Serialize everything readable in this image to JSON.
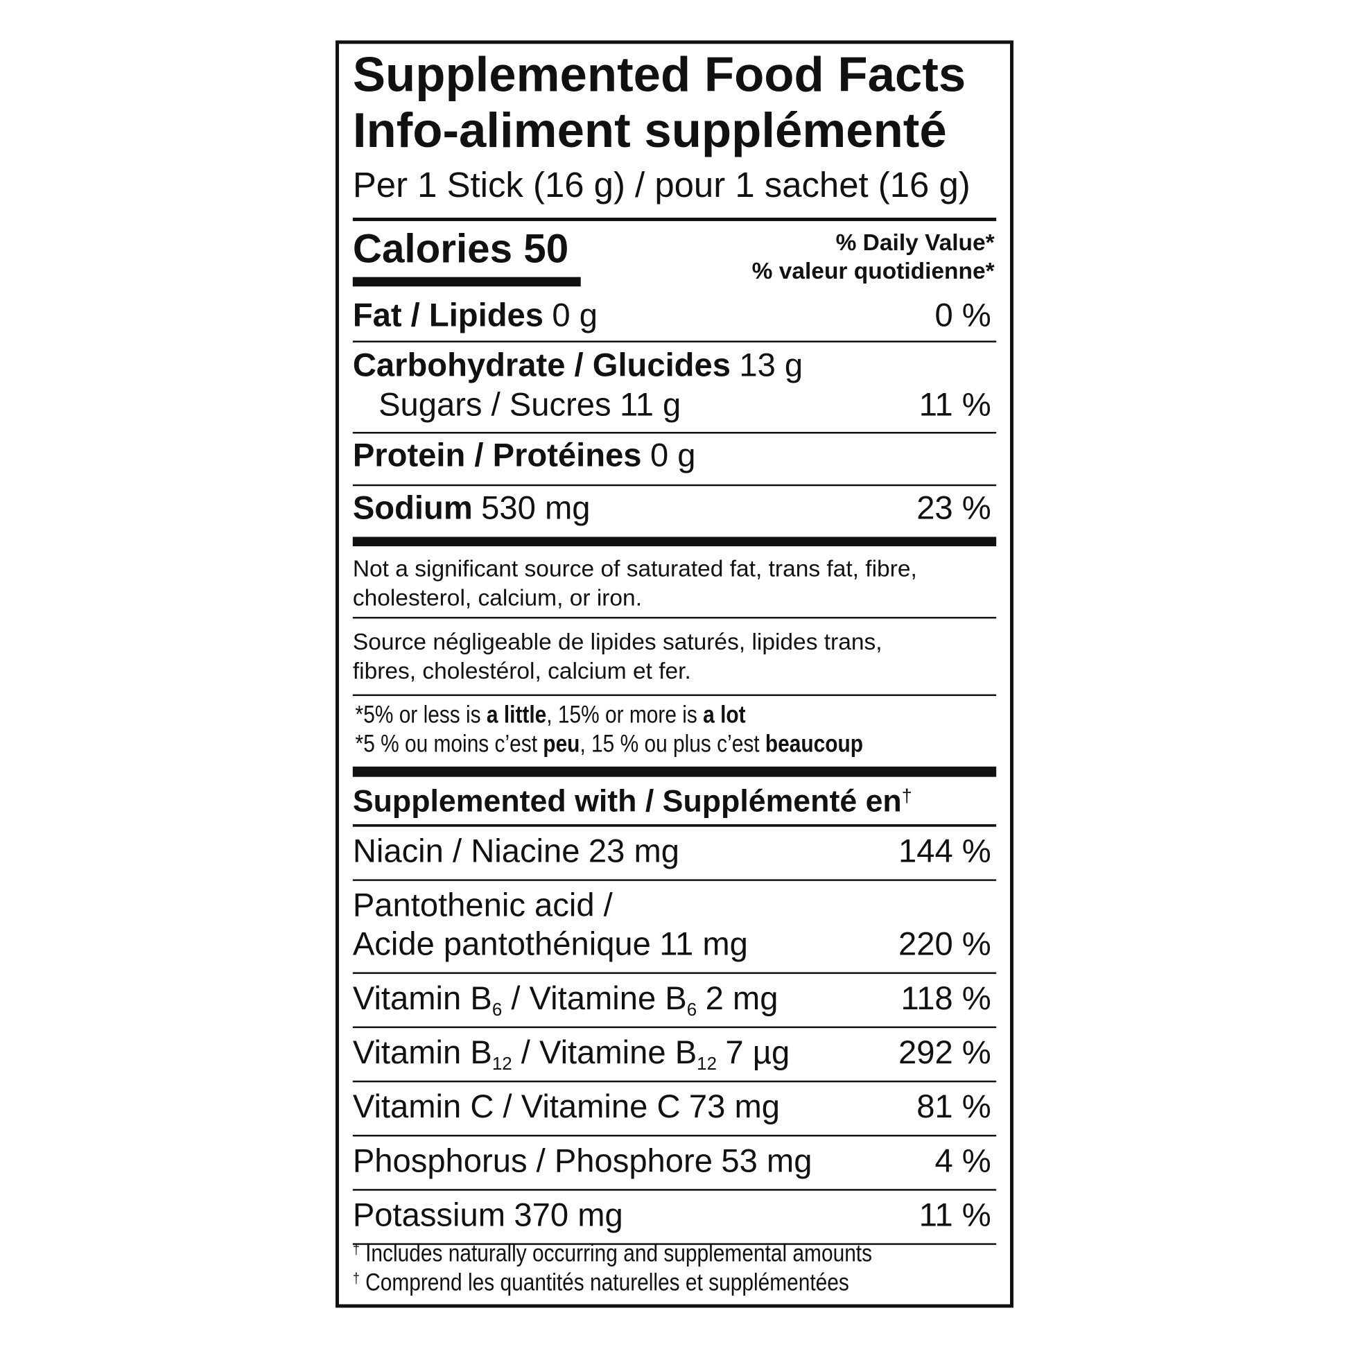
{
  "header": {
    "title": [
      "Supplemented Food Facts",
      "Info-aliment supplémenté"
    ],
    "serving": "Per 1 Stick (16 g) / pour 1 sachet (16 g)"
  },
  "calories": {
    "label": "Calories",
    "value": 50
  },
  "daily_value": [
    "% Daily Value*",
    "% valeur quotidienne*"
  ],
  "nutrients": [
    {
      "name": "Fat / Lipides",
      "amount": "0 g",
      "dv": "0 %"
    },
    {
      "name": "Carbohydrate / Glucides",
      "amount": "13 g"
    },
    {
      "name": "Sugars / Sucres",
      "amount": "11 g",
      "dv": "11 %",
      "sub_item": true
    },
    {
      "name": "Protein / Protéines",
      "amount": "0 g"
    },
    {
      "name": "Sodium",
      "amount": "530 mg",
      "dv": "23 %"
    }
  ],
  "notes": [
    [
      "Not a significant source of saturated fat, trans fat, fibre,",
      "cholesterol, calcium, or iron."
    ],
    [
      "Source négligeable de lipides saturés, lipides trans,",
      "fibres, cholestérol, calcium et fer."
    ]
  ],
  "dv_guide": [
    [
      {
        "text": "*5% or less is "
      },
      {
        "bold": "a little"
      },
      {
        "text": ", 15% or more is "
      },
      {
        "bold": "a lot"
      }
    ],
    [
      {
        "text": "*5 % ou moins c’est "
      },
      {
        "bold": "peu"
      },
      {
        "text": ", 15 % ou plus c’est "
      },
      {
        "bold": "beaucoup"
      }
    ]
  ],
  "supplements": {
    "heading": [
      {
        "bold": "Supplemented with / Supplémenté en"
      },
      {
        "sup": "†"
      }
    ],
    "rows": [
      {
        "name": [
          [
            {
              "text": "Niacin / Niacine"
            }
          ]
        ],
        "amount": "23 mg",
        "dv": "144 %"
      },
      {
        "name": [
          [
            {
              "text": "Pantothenic acid /"
            }
          ],
          [
            {
              "text": "Acide pantothénique"
            }
          ]
        ],
        "amount": "11 mg",
        "dv": "220 %"
      },
      {
        "name": [
          [
            {
              "text": "Vitamin B"
            },
            {
              "sub": "6"
            },
            {
              "text": " / Vitamine B"
            },
            {
              "sub": "6"
            }
          ]
        ],
        "amount": "2 mg",
        "dv": "118 %"
      },
      {
        "name": [
          [
            {
              "text": "Vitamin B"
            },
            {
              "sub": "12"
            },
            {
              "text": " / Vitamine B"
            },
            {
              "sub": "12"
            }
          ]
        ],
        "amount": "7 µg",
        "dv": "292 %"
      },
      {
        "name": [
          [
            {
              "text": "Vitamin C / Vitamine C"
            }
          ]
        ],
        "amount": "73 mg",
        "dv": "81 %"
      },
      {
        "name": [
          [
            {
              "text": "Phosphorus / Phosphore"
            }
          ]
        ],
        "amount": "53 mg",
        "dv": "4 %"
      },
      {
        "name": [
          [
            {
              "text": "Potassium"
            }
          ]
        ],
        "amount": "370 mg",
        "dv": "11 %"
      }
    ]
  },
  "footnotes": [
    [
      {
        "sup": "†"
      },
      {
        "text": " Includes naturally occurring and supplemental amounts"
      }
    ],
    [
      {
        "sup": "†"
      },
      {
        "text": " Comprend les quantités naturelles et supplémentées"
      }
    ]
  ]
}
